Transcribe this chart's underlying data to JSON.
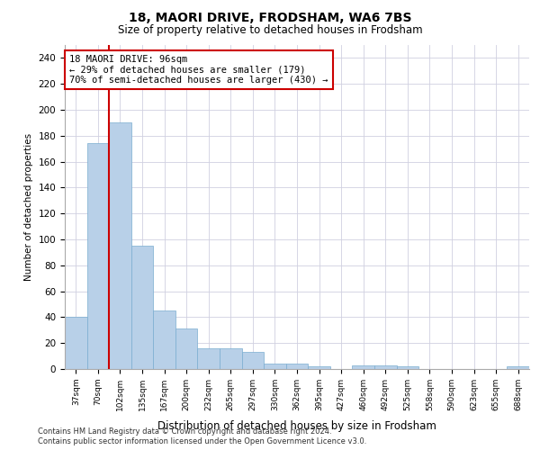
{
  "title1": "18, MAORI DRIVE, FRODSHAM, WA6 7BS",
  "title2": "Size of property relative to detached houses in Frodsham",
  "xlabel": "Distribution of detached houses by size in Frodsham",
  "ylabel": "Number of detached properties",
  "categories": [
    "37sqm",
    "70sqm",
    "102sqm",
    "135sqm",
    "167sqm",
    "200sqm",
    "232sqm",
    "265sqm",
    "297sqm",
    "330sqm",
    "362sqm",
    "395sqm",
    "427sqm",
    "460sqm",
    "492sqm",
    "525sqm",
    "558sqm",
    "590sqm",
    "623sqm",
    "655sqm",
    "688sqm"
  ],
  "values": [
    40,
    174,
    190,
    95,
    45,
    31,
    16,
    16,
    13,
    4,
    4,
    2,
    0,
    3,
    3,
    2,
    0,
    0,
    0,
    0,
    2
  ],
  "bar_color": "#b8d0e8",
  "bar_edge_color": "#7aadd0",
  "red_line_x": 1.5,
  "annotation_line1": "18 MAORI DRIVE: 96sqm",
  "annotation_line2": "← 29% of detached houses are smaller (179)",
  "annotation_line3": "70% of semi-detached houses are larger (430) →",
  "annotation_box_color": "#ffffff",
  "annotation_box_edgecolor": "#cc0000",
  "red_line_color": "#cc0000",
  "ylim": [
    0,
    250
  ],
  "yticks": [
    0,
    20,
    40,
    60,
    80,
    100,
    120,
    140,
    160,
    180,
    200,
    220,
    240
  ],
  "footnote1": "Contains HM Land Registry data © Crown copyright and database right 2024.",
  "footnote2": "Contains public sector information licensed under the Open Government Licence v3.0.",
  "bg_color": "#ffffff",
  "grid_color": "#d0d0e0"
}
